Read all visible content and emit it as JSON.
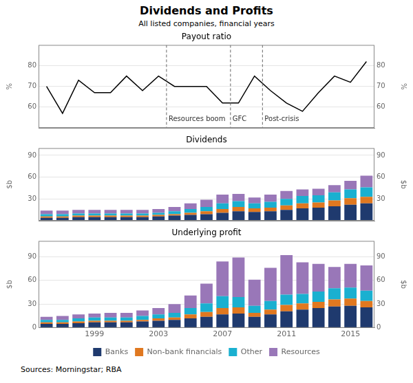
{
  "title": "Dividends and Profits",
  "subtitle": "All listed companies, financial years",
  "source": "Sources:   Morningstar; RBA",
  "chart_data": [
    {
      "type": "line",
      "title": "Payout ratio",
      "x": [
        1996,
        1997,
        1998,
        1999,
        2000,
        2001,
        2002,
        2003,
        2004,
        2005,
        2006,
        2007,
        2008,
        2009,
        2010,
        2011,
        2012,
        2013,
        2014,
        2015,
        2016
      ],
      "series": [
        {
          "color": "#000000",
          "values": [
            70,
            57,
            73,
            67,
            67,
            75,
            68,
            75,
            70,
            70,
            70,
            62,
            62,
            75,
            68,
            62,
            58,
            67,
            75,
            72,
            82
          ]
        }
      ],
      "xlim": [
        1995.5,
        2016.5
      ],
      "ylim": [
        50,
        90
      ],
      "yticks": [
        60,
        70,
        80
      ],
      "y2lim": [
        50,
        90
      ],
      "y2ticks": [
        60,
        70,
        80
      ],
      "y_label": "%",
      "y2_label": "%",
      "grid": true,
      "tick_labels": "y",
      "annotations": [
        {
          "x": 2003.5,
          "text": "Resources boom"
        },
        {
          "x": 2007.5,
          "text": "GFC"
        },
        {
          "x": 2009.5,
          "text": "Post-crisis"
        }
      ]
    },
    {
      "type": "bar",
      "stacked": true,
      "title": "Dividends",
      "x": [
        1996,
        1997,
        1998,
        1999,
        2000,
        2001,
        2002,
        2003,
        2004,
        2005,
        2006,
        2007,
        2008,
        2009,
        2010,
        2011,
        2012,
        2013,
        2014,
        2015,
        2016
      ],
      "series": [
        {
          "name": "Banks",
          "color": "#1f3a6e",
          "values": [
            4,
            4,
            5,
            5,
            5,
            5,
            5,
            6,
            7,
            8,
            9,
            11,
            13,
            12,
            13,
            15,
            17,
            18,
            20,
            22,
            24
          ]
        },
        {
          "name": "Non-bank financials",
          "color": "#e07820",
          "values": [
            2,
            2,
            2,
            2,
            2,
            2,
            2,
            2,
            2,
            3,
            4,
            5,
            6,
            5,
            5,
            6,
            7,
            7,
            8,
            9,
            9
          ]
        },
        {
          "name": "Other",
          "color": "#1ab0d0",
          "values": [
            3,
            3,
            3,
            3,
            3,
            3,
            3,
            3,
            4,
            5,
            6,
            8,
            8,
            7,
            8,
            9,
            10,
            10,
            11,
            12,
            13
          ]
        },
        {
          "name": "Resources",
          "color": "#9977b8",
          "values": [
            5,
            5,
            5,
            5,
            5,
            5,
            5,
            5,
            6,
            8,
            10,
            12,
            10,
            8,
            10,
            11,
            9,
            9,
            10,
            12,
            16
          ]
        }
      ],
      "xlim": [
        1995.5,
        2016.5
      ],
      "ylim": [
        0,
        100
      ],
      "yticks": [
        30,
        60,
        90
      ],
      "y2lim": [
        0,
        100
      ],
      "y2ticks": [
        30,
        60,
        90
      ],
      "y_label": "$b",
      "y2_label": "$b",
      "grid": true,
      "tick_labels": "y"
    },
    {
      "type": "bar",
      "stacked": true,
      "title": "Underlying profit",
      "x": [
        1996,
        1997,
        1998,
        1999,
        2000,
        2001,
        2002,
        2003,
        2004,
        2005,
        2006,
        2007,
        2008,
        2009,
        2010,
        2011,
        2012,
        2013,
        2014,
        2015,
        2016
      ],
      "series": [
        {
          "name": "Banks",
          "color": "#1f3a6e",
          "values": [
            5,
            5,
            6,
            7,
            7,
            7,
            8,
            9,
            10,
            12,
            14,
            17,
            18,
            14,
            17,
            21,
            23,
            25,
            27,
            28,
            26
          ]
        },
        {
          "name": "Non-bank financials",
          "color": "#e07820",
          "values": [
            2,
            2,
            2,
            2,
            2,
            2,
            2,
            3,
            3,
            5,
            6,
            8,
            8,
            5,
            6,
            8,
            8,
            8,
            9,
            9,
            8
          ]
        },
        {
          "name": "Other",
          "color": "#1ab0d0",
          "values": [
            3,
            3,
            4,
            4,
            4,
            4,
            5,
            5,
            6,
            8,
            11,
            15,
            13,
            9,
            11,
            13,
            12,
            13,
            14,
            14,
            13
          ]
        },
        {
          "name": "Resources",
          "color": "#9977b8",
          "values": [
            4,
            5,
            5,
            5,
            6,
            6,
            7,
            8,
            11,
            16,
            25,
            44,
            50,
            33,
            42,
            50,
            40,
            35,
            27,
            30,
            32
          ]
        }
      ],
      "xlim": [
        1995.5,
        2016.5
      ],
      "xticks": [
        1999,
        2003,
        2007,
        2011,
        2015
      ],
      "ylim": [
        0,
        110
      ],
      "yticks": [
        0,
        30,
        60,
        90
      ],
      "y2lim": [
        0,
        110
      ],
      "y2ticks": [
        0,
        30,
        60,
        90
      ],
      "y_label": "$b",
      "y2_label": "$b",
      "grid": true,
      "legend": "bottom"
    }
  ]
}
